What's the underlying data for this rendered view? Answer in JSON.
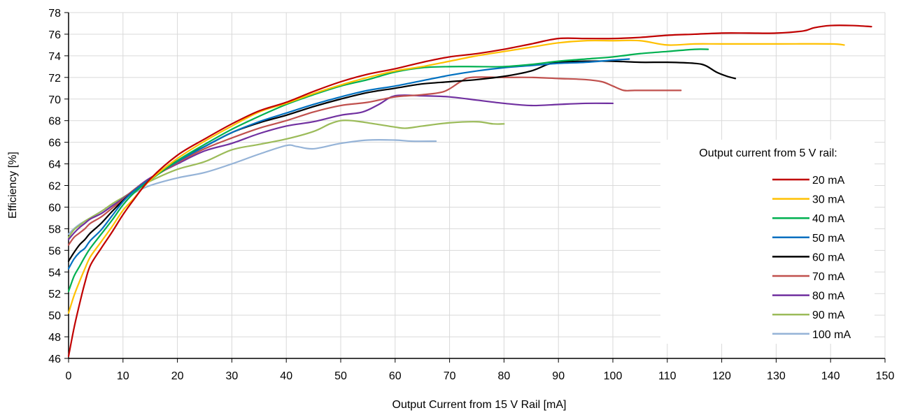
{
  "chart_data": {
    "type": "line",
    "title": "",
    "xlabel": "Output Current from 15 V Rail [mA]",
    "ylabel": "Efficiency [%]",
    "xlim": [
      0,
      150
    ],
    "ylim": [
      46,
      78
    ],
    "xticks": [
      0,
      10,
      20,
      30,
      40,
      50,
      60,
      70,
      80,
      90,
      100,
      110,
      120,
      130,
      140,
      150
    ],
    "yticks": [
      46,
      48,
      50,
      52,
      54,
      56,
      58,
      60,
      62,
      64,
      66,
      68,
      70,
      72,
      74,
      76,
      78
    ],
    "grid": true,
    "legend_title": "Output current from 5 V rail:",
    "legend_position": "right",
    "series": [
      {
        "name": "20 mA",
        "color": "#c00000",
        "points": [
          [
            0,
            46.2
          ],
          [
            1,
            48.8
          ],
          [
            2,
            51.0
          ],
          [
            3,
            53.0
          ],
          [
            4,
            54.6
          ],
          [
            6,
            56.2
          ],
          [
            8,
            57.7
          ],
          [
            10,
            59.3
          ],
          [
            12,
            60.7
          ],
          [
            15,
            62.6
          ],
          [
            20,
            64.8
          ],
          [
            25,
            66.3
          ],
          [
            30,
            67.7
          ],
          [
            35,
            68.9
          ],
          [
            40,
            69.7
          ],
          [
            45,
            70.7
          ],
          [
            50,
            71.6
          ],
          [
            55,
            72.3
          ],
          [
            60,
            72.8
          ],
          [
            65,
            73.4
          ],
          [
            70,
            73.9
          ],
          [
            75,
            74.2
          ],
          [
            80,
            74.6
          ],
          [
            85,
            75.1
          ],
          [
            90,
            75.6
          ],
          [
            95,
            75.6
          ],
          [
            100,
            75.6
          ],
          [
            105,
            75.7
          ],
          [
            110,
            75.9
          ],
          [
            115,
            76.0
          ],
          [
            120,
            76.1
          ],
          [
            125,
            76.1
          ],
          [
            130,
            76.1
          ],
          [
            135,
            76.3
          ],
          [
            137,
            76.6
          ],
          [
            140,
            76.8
          ],
          [
            144,
            76.8
          ],
          [
            147.5,
            76.7
          ]
        ]
      },
      {
        "name": "30 mA",
        "color": "#ffc000",
        "points": [
          [
            0,
            50.2
          ],
          [
            1,
            51.8
          ],
          [
            2,
            53.1
          ],
          [
            3,
            54.3
          ],
          [
            4,
            55.4
          ],
          [
            6,
            56.8
          ],
          [
            8,
            58.2
          ],
          [
            10,
            59.7
          ],
          [
            12,
            60.8
          ],
          [
            15,
            62.5
          ],
          [
            20,
            64.5
          ],
          [
            25,
            66.1
          ],
          [
            30,
            67.5
          ],
          [
            35,
            68.8
          ],
          [
            40,
            69.6
          ],
          [
            45,
            70.5
          ],
          [
            50,
            71.3
          ],
          [
            55,
            72.0
          ],
          [
            60,
            72.6
          ],
          [
            65,
            73.0
          ],
          [
            70,
            73.5
          ],
          [
            75,
            74.0
          ],
          [
            80,
            74.4
          ],
          [
            85,
            74.8
          ],
          [
            90,
            75.2
          ],
          [
            95,
            75.4
          ],
          [
            100,
            75.4
          ],
          [
            105,
            75.4
          ],
          [
            110,
            75.0
          ],
          [
            115,
            75.1
          ],
          [
            120,
            75.1
          ],
          [
            130,
            75.1
          ],
          [
            140,
            75.1
          ],
          [
            142.5,
            75.0
          ]
        ]
      },
      {
        "name": "40 mA",
        "color": "#00b050",
        "points": [
          [
            0,
            52.2
          ],
          [
            1,
            53.6
          ],
          [
            2,
            54.5
          ],
          [
            3,
            55.4
          ],
          [
            4,
            56.2
          ],
          [
            6,
            57.5
          ],
          [
            8,
            58.8
          ],
          [
            10,
            60.2
          ],
          [
            12,
            61.3
          ],
          [
            15,
            62.5
          ],
          [
            20,
            64.3
          ],
          [
            25,
            65.8
          ],
          [
            30,
            67.2
          ],
          [
            35,
            68.4
          ],
          [
            40,
            69.5
          ],
          [
            45,
            70.4
          ],
          [
            50,
            71.2
          ],
          [
            55,
            71.8
          ],
          [
            60,
            72.5
          ],
          [
            65,
            72.9
          ],
          [
            70,
            73.0
          ],
          [
            75,
            73.0
          ],
          [
            80,
            73.0
          ],
          [
            85,
            73.2
          ],
          [
            90,
            73.5
          ],
          [
            95,
            73.7
          ],
          [
            100,
            73.9
          ],
          [
            105,
            74.2
          ],
          [
            110,
            74.4
          ],
          [
            115,
            74.6
          ],
          [
            117.5,
            74.6
          ]
        ]
      },
      {
        "name": "50 mA",
        "color": "#0070c0",
        "points": [
          [
            0,
            54.3
          ],
          [
            1,
            55.2
          ],
          [
            2,
            55.8
          ],
          [
            3,
            56.2
          ],
          [
            4,
            56.9
          ],
          [
            6,
            57.9
          ],
          [
            8,
            59.2
          ],
          [
            10,
            60.5
          ],
          [
            12,
            61.5
          ],
          [
            15,
            62.6
          ],
          [
            20,
            64.2
          ],
          [
            25,
            65.6
          ],
          [
            30,
            66.9
          ],
          [
            35,
            67.9
          ],
          [
            40,
            68.7
          ],
          [
            45,
            69.5
          ],
          [
            50,
            70.2
          ],
          [
            55,
            70.8
          ],
          [
            60,
            71.2
          ],
          [
            65,
            71.7
          ],
          [
            70,
            72.2
          ],
          [
            75,
            72.6
          ],
          [
            80,
            72.9
          ],
          [
            85,
            73.1
          ],
          [
            90,
            73.3
          ],
          [
            95,
            73.4
          ],
          [
            100,
            73.6
          ],
          [
            103,
            73.7
          ]
        ]
      },
      {
        "name": "60 mA",
        "color": "#000000",
        "points": [
          [
            0,
            55.0
          ],
          [
            1,
            55.8
          ],
          [
            2,
            56.5
          ],
          [
            3,
            57.0
          ],
          [
            4,
            57.6
          ],
          [
            6,
            58.5
          ],
          [
            8,
            59.6
          ],
          [
            10,
            60.6
          ],
          [
            12,
            61.5
          ],
          [
            15,
            62.6
          ],
          [
            20,
            64.3
          ],
          [
            25,
            65.6
          ],
          [
            30,
            66.9
          ],
          [
            35,
            67.8
          ],
          [
            40,
            68.5
          ],
          [
            45,
            69.3
          ],
          [
            50,
            70.0
          ],
          [
            55,
            70.6
          ],
          [
            60,
            71.0
          ],
          [
            65,
            71.4
          ],
          [
            70,
            71.6
          ],
          [
            75,
            71.8
          ],
          [
            80,
            72.1
          ],
          [
            85,
            72.6
          ],
          [
            88,
            73.2
          ],
          [
            90,
            73.4
          ],
          [
            95,
            73.5
          ],
          [
            100,
            73.5
          ],
          [
            105,
            73.4
          ],
          [
            110,
            73.4
          ],
          [
            115,
            73.3
          ],
          [
            117,
            73.1
          ],
          [
            119,
            72.5
          ],
          [
            121,
            72.1
          ],
          [
            122.5,
            71.9
          ]
        ]
      },
      {
        "name": "70 mA",
        "color": "#c0504d",
        "points": [
          [
            0,
            56.5
          ],
          [
            1,
            57.2
          ],
          [
            2,
            57.6
          ],
          [
            3,
            58.0
          ],
          [
            4,
            58.5
          ],
          [
            6,
            59.1
          ],
          [
            8,
            59.9
          ],
          [
            10,
            60.7
          ],
          [
            12,
            61.6
          ],
          [
            15,
            62.6
          ],
          [
            20,
            64.1
          ],
          [
            25,
            65.4
          ],
          [
            30,
            66.4
          ],
          [
            35,
            67.3
          ],
          [
            40,
            68.0
          ],
          [
            45,
            68.8
          ],
          [
            50,
            69.4
          ],
          [
            55,
            69.7
          ],
          [
            60,
            70.2
          ],
          [
            65,
            70.4
          ],
          [
            69,
            70.7
          ],
          [
            72,
            71.6
          ],
          [
            74,
            72.0
          ],
          [
            80,
            72.0
          ],
          [
            85,
            72.0
          ],
          [
            90,
            71.9
          ],
          [
            95,
            71.8
          ],
          [
            98,
            71.6
          ],
          [
            100,
            71.2
          ],
          [
            102,
            70.8
          ],
          [
            104,
            70.8
          ],
          [
            108,
            70.8
          ],
          [
            112.5,
            70.8
          ]
        ]
      },
      {
        "name": "80 mA",
        "color": "#7030a0",
        "points": [
          [
            0,
            57.0
          ],
          [
            1,
            57.6
          ],
          [
            2,
            58.1
          ],
          [
            3,
            58.5
          ],
          [
            4,
            58.9
          ],
          [
            6,
            59.4
          ],
          [
            8,
            60.1
          ],
          [
            10,
            60.8
          ],
          [
            12,
            61.6
          ],
          [
            15,
            62.7
          ],
          [
            20,
            64.0
          ],
          [
            25,
            65.2
          ],
          [
            30,
            65.9
          ],
          [
            35,
            66.8
          ],
          [
            40,
            67.5
          ],
          [
            45,
            67.9
          ],
          [
            50,
            68.5
          ],
          [
            54,
            68.8
          ],
          [
            57,
            69.5
          ],
          [
            60,
            70.3
          ],
          [
            65,
            70.3
          ],
          [
            70,
            70.2
          ],
          [
            75,
            69.9
          ],
          [
            80,
            69.6
          ],
          [
            85,
            69.4
          ],
          [
            90,
            69.5
          ],
          [
            95,
            69.6
          ],
          [
            100,
            69.6
          ]
        ]
      },
      {
        "name": "90 mA",
        "color": "#9bbb59",
        "points": [
          [
            0,
            57.2
          ],
          [
            1,
            57.9
          ],
          [
            2,
            58.3
          ],
          [
            3,
            58.7
          ],
          [
            4,
            59.0
          ],
          [
            6,
            59.6
          ],
          [
            8,
            60.3
          ],
          [
            10,
            60.9
          ],
          [
            12,
            61.5
          ],
          [
            15,
            62.4
          ],
          [
            20,
            63.5
          ],
          [
            25,
            64.2
          ],
          [
            30,
            65.3
          ],
          [
            35,
            65.8
          ],
          [
            40,
            66.3
          ],
          [
            45,
            67.0
          ],
          [
            48,
            67.7
          ],
          [
            50,
            68.0
          ],
          [
            52,
            68.0
          ],
          [
            55,
            67.8
          ],
          [
            60,
            67.4
          ],
          [
            62,
            67.3
          ],
          [
            65,
            67.5
          ],
          [
            70,
            67.8
          ],
          [
            75,
            67.9
          ],
          [
            78,
            67.7
          ],
          [
            80,
            67.7
          ]
        ]
      },
      {
        "name": "100 mA",
        "color": "#95b3d7",
        "points": [
          [
            0,
            57.5
          ],
          [
            1,
            58.0
          ],
          [
            2,
            58.4
          ],
          [
            3,
            58.7
          ],
          [
            4,
            59.0
          ],
          [
            6,
            59.6
          ],
          [
            8,
            60.2
          ],
          [
            10,
            60.7
          ],
          [
            12,
            61.3
          ],
          [
            15,
            62.0
          ],
          [
            20,
            62.7
          ],
          [
            25,
            63.2
          ],
          [
            30,
            64.0
          ],
          [
            35,
            64.9
          ],
          [
            40,
            65.7
          ],
          [
            42,
            65.6
          ],
          [
            45,
            65.4
          ],
          [
            50,
            65.9
          ],
          [
            55,
            66.2
          ],
          [
            60,
            66.2
          ],
          [
            63,
            66.1
          ],
          [
            67.5,
            66.1
          ]
        ]
      }
    ]
  }
}
